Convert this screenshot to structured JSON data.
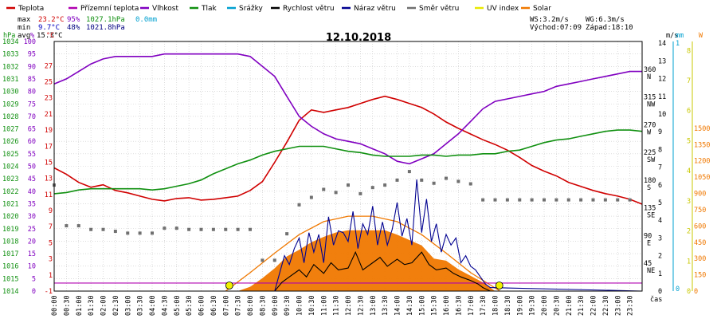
{
  "legend": [
    {
      "label": "Teplota",
      "color": "#d00000"
    },
    {
      "label": "Přízemní teplota",
      "color": "#b000b0"
    },
    {
      "label": "Vlhkost",
      "color": "#8000c0"
    },
    {
      "label": "Tlak",
      "color": "#109010"
    },
    {
      "label": "Srážky",
      "color": "#00a0d0"
    },
    {
      "label": "Rychlost větru",
      "color": "#000000"
    },
    {
      "label": "Náraz větru",
      "color": "#000090"
    },
    {
      "label": "Směr větru",
      "color": "#707070"
    },
    {
      "label": "UV index",
      "color": "#e8e800"
    },
    {
      "label": "Solar",
      "color": "#f07800"
    }
  ],
  "stats": {
    "max_label": "max",
    "max_temp": "23.2°C",
    "max_hum": "95%",
    "max_press": "1027.1hPa",
    "max_rain": "0.0mm",
    "min_label": "min",
    "min_temp": "9.7°C",
    "min_hum": "48%",
    "min_press": "1021.8hPa",
    "avg_label": "avg",
    "avg_temp": "15.3°C",
    "ws": "WS:3.2m/s",
    "wg": "WG:6.3m/s",
    "sunrise": "Východ:07:09",
    "sunset": "Západ:18:10"
  },
  "date_title": "12.10.2018",
  "axes": {
    "hpa_unit": "hPa",
    "pct_unit": "%",
    "c_unit": "°C",
    "ms_unit": "m/s",
    "mm_unit": "mm",
    "w_unit": "W",
    "time_unit": "čas",
    "hpa_ticks": [
      "1034",
      "1033",
      "1032",
      "1031",
      "1030",
      "1029",
      "1028",
      "1027",
      "1026",
      "1025",
      "1024",
      "1023",
      "1022",
      "1021",
      "1020",
      "1019",
      "1018",
      "1017",
      "1016",
      "1015",
      "1014"
    ],
    "pct_ticks": [
      "100",
      "95",
      "90",
      "85",
      "80",
      "75",
      "70",
      "65",
      "60",
      "55",
      "50",
      "45",
      "40",
      "35",
      "30",
      "25",
      "20",
      "15",
      "10",
      "5",
      "0"
    ],
    "c_ticks": [
      "27",
      "25",
      "23",
      "21",
      "19",
      "17",
      "15",
      "13",
      "11",
      "9",
      "7",
      "5",
      "3",
      "1",
      "-1"
    ],
    "dir_ticks": [
      {
        "deg": "360",
        "name": "N"
      },
      {
        "deg": "315",
        "name": "NW"
      },
      {
        "deg": "270",
        "name": "W"
      },
      {
        "deg": "225",
        "name": "SW"
      },
      {
        "deg": "180",
        "name": "S"
      },
      {
        "deg": "135",
        "name": "SE"
      },
      {
        "deg": "90",
        "name": "E"
      },
      {
        "deg": "45",
        "name": "NE"
      }
    ],
    "ms_ticks": [
      "14",
      "13",
      "12",
      "11",
      "10",
      "9",
      "8",
      "7",
      "6",
      "5",
      "4",
      "3",
      "2",
      "1",
      "0"
    ],
    "mm_ticks": [
      "1",
      "0"
    ],
    "uv_ticks": [
      "8",
      "7",
      "6",
      "5",
      "4",
      "3",
      "2",
      "1",
      "0"
    ],
    "w_ticks": [
      "1500",
      "1350",
      "1200",
      "1050",
      "900",
      "750",
      "600",
      "450",
      "300",
      "150",
      "0"
    ],
    "time_ticks": [
      "00:00",
      "00:30",
      "01:00",
      "01:30",
      "02:00",
      "02:30",
      "03:00",
      "03:30",
      "04:00",
      "04:30",
      "05:00",
      "05:30",
      "06:00",
      "06:30",
      "07:00",
      "07:30",
      "08:00",
      "08:30",
      "09:00",
      "09:30",
      "10:00",
      "10:30",
      "11:00",
      "11:30",
      "12:00",
      "12:30",
      "13:00",
      "13:30",
      "14:00",
      "14:30",
      "15:00",
      "15:30",
      "16:00",
      "16:30",
      "17:00",
      "17:30",
      "18:00",
      "18:30",
      "19:00",
      "19:30",
      "20:00",
      "20:30",
      "21:00",
      "21:30",
      "22:00",
      "22:30",
      "23:00",
      "23:30"
    ]
  },
  "chart_data": {
    "type": "line",
    "x_unit": "hour",
    "xlim": [
      0,
      24
    ],
    "series": [
      {
        "name": "Teplota",
        "unit": "°C",
        "color": "#d00000",
        "x": [
          0,
          0.5,
          1,
          1.5,
          2,
          2.5,
          3,
          3.5,
          4,
          4.5,
          5,
          5.5,
          6,
          6.5,
          7,
          7.5,
          8,
          8.5,
          9,
          9.5,
          10,
          10.5,
          11,
          11.5,
          12,
          12.5,
          13,
          13.5,
          14,
          14.5,
          15,
          15.5,
          16,
          16.5,
          17,
          17.5,
          18,
          18.5,
          19,
          19.5,
          20,
          20.5,
          21,
          21.5,
          22,
          22.5,
          23,
          23.5,
          24
        ],
        "values": [
          14.3,
          13.5,
          12.5,
          11.9,
          12.2,
          11.5,
          11.2,
          10.8,
          10.4,
          10.2,
          10.5,
          10.6,
          10.3,
          10.4,
          10.6,
          10.8,
          11.5,
          12.6,
          15.0,
          17.5,
          20.2,
          21.5,
          21.2,
          21.5,
          21.8,
          22.3,
          22.8,
          23.2,
          22.8,
          22.3,
          21.8,
          21.0,
          20.0,
          19.2,
          18.5,
          17.8,
          17.2,
          16.5,
          15.6,
          14.6,
          13.9,
          13.3,
          12.5,
          12.0,
          11.5,
          11.1,
          10.8,
          10.4,
          9.8
        ]
      },
      {
        "name": "Přízemní teplota",
        "unit": "°C",
        "color": "#b000b0",
        "x": [
          0,
          24
        ],
        "values": [
          0.0,
          0.0
        ]
      },
      {
        "name": "Vlhkost",
        "unit": "%",
        "color": "#8000c0",
        "x": [
          0,
          0.5,
          1,
          1.5,
          2,
          2.5,
          3,
          3.5,
          4,
          4.5,
          5,
          5.5,
          6,
          6.5,
          7,
          7.5,
          8,
          8.5,
          9,
          9.5,
          10,
          10.5,
          11,
          11.5,
          12,
          12.5,
          13,
          13.5,
          14,
          14.5,
          15,
          15.5,
          16,
          16.5,
          17,
          17.5,
          18,
          18.5,
          19,
          19.5,
          20,
          20.5,
          21,
          21.5,
          22,
          22.5,
          23,
          23.5,
          24
        ],
        "values": [
          83,
          85,
          88,
          91,
          93,
          94,
          94,
          94,
          94,
          95,
          95,
          95,
          95,
          95,
          95,
          95,
          94,
          90,
          86,
          78,
          70,
          66,
          63,
          61,
          60,
          59,
          57,
          55,
          52,
          51,
          53,
          55,
          59,
          63,
          68,
          73,
          76,
          77,
          78,
          79,
          80,
          82,
          83,
          84,
          85,
          86,
          87,
          88,
          88
        ]
      },
      {
        "name": "Tlak",
        "unit": "hPa",
        "color": "#109010",
        "x": [
          0,
          0.5,
          1,
          1.5,
          2,
          2.5,
          3,
          3.5,
          4,
          4.5,
          5,
          5.5,
          6,
          6.5,
          7,
          7.5,
          8,
          8.5,
          9,
          9.5,
          10,
          10.5,
          11,
          11.5,
          12,
          12.5,
          13,
          13.5,
          14,
          14.5,
          15,
          15.5,
          16,
          16.5,
          17,
          17.5,
          18,
          18.5,
          19,
          19.5,
          20,
          20.5,
          21,
          21.5,
          22,
          22.5,
          23,
          23.5,
          24
        ],
        "values": [
          1021.8,
          1021.9,
          1022.1,
          1022.2,
          1022.2,
          1022.2,
          1022.2,
          1022.2,
          1022.1,
          1022.2,
          1022.4,
          1022.6,
          1022.9,
          1023.4,
          1023.8,
          1024.2,
          1024.5,
          1024.9,
          1025.2,
          1025.4,
          1025.6,
          1025.6,
          1025.6,
          1025.4,
          1025.2,
          1025.1,
          1024.9,
          1024.8,
          1024.8,
          1024.8,
          1024.9,
          1024.9,
          1024.8,
          1024.9,
          1024.9,
          1025.0,
          1025.0,
          1025.2,
          1025.3,
          1025.6,
          1025.9,
          1026.1,
          1026.2,
          1026.4,
          1026.6,
          1026.8,
          1026.9,
          1026.9,
          1026.8
        ]
      },
      {
        "name": "Srážky",
        "unit": "mm",
        "color": "#00a0d0",
        "x": [
          0,
          24
        ],
        "values": [
          0.0,
          0.0
        ]
      },
      {
        "name": "Rychlost větru",
        "unit": "m/s",
        "color": "#000000",
        "x": [
          0,
          9.0,
          9.3,
          9.6,
          10,
          10.3,
          10.6,
          11,
          11.3,
          11.6,
          12,
          12.3,
          12.6,
          13,
          13.3,
          13.6,
          14,
          14.3,
          14.6,
          15,
          15.3,
          15.6,
          16,
          16.3,
          16.6,
          17,
          17.3,
          17.5,
          17.8,
          24
        ],
        "values": [
          0,
          0,
          0.5,
          0.8,
          1.2,
          0.8,
          1.5,
          1.0,
          1.6,
          1.2,
          1.3,
          2.2,
          1.2,
          1.6,
          1.9,
          1.4,
          1.8,
          1.5,
          1.6,
          2.2,
          1.5,
          1.2,
          1.3,
          1.0,
          0.8,
          0.6,
          0.4,
          0.2,
          0,
          0
        ]
      },
      {
        "name": "Náraz větru",
        "unit": "m/s",
        "color": "#000090",
        "x": [
          0,
          9.0,
          9.2,
          9.4,
          9.6,
          9.8,
          10,
          10.2,
          10.4,
          10.6,
          10.8,
          11,
          11.2,
          11.4,
          11.6,
          11.8,
          12,
          12.2,
          12.4,
          12.6,
          12.8,
          13,
          13.2,
          13.4,
          13.6,
          13.8,
          14,
          14.2,
          14.4,
          14.6,
          14.8,
          15,
          15.2,
          15.4,
          15.6,
          15.8,
          16,
          16.2,
          16.4,
          16.6,
          16.8,
          17,
          17.2,
          17.4,
          17.6,
          17.8,
          24
        ],
        "values": [
          0,
          0,
          1.0,
          2.0,
          1.5,
          2.4,
          3.0,
          1.6,
          3.3,
          2.2,
          3.2,
          1.6,
          4.2,
          2.6,
          3.4,
          3.3,
          2.8,
          4.5,
          2.4,
          3.8,
          3.2,
          4.8,
          2.6,
          3.9,
          2.6,
          3.5,
          5.0,
          3.1,
          4.1,
          2.6,
          6.3,
          3.3,
          5.2,
          2.8,
          3.8,
          2.2,
          3.2,
          2.6,
          3.0,
          1.6,
          2.0,
          1.4,
          1.2,
          0.8,
          0.4,
          0.2,
          0
        ]
      },
      {
        "name": "Směr větru",
        "unit": "°",
        "color": "#707070",
        "x": [
          0,
          0.5,
          1,
          1.5,
          2,
          2.5,
          3,
          3.5,
          4,
          4.5,
          5,
          5.5,
          6,
          6.5,
          7,
          7.5,
          8,
          8.5,
          9,
          9.5,
          10,
          10.5,
          11,
          11.5,
          12,
          12.5,
          13,
          13.5,
          14,
          14.5,
          15,
          15.5,
          16,
          16.5,
          17,
          17.5,
          18,
          18.5,
          19,
          19.5,
          20,
          20.5,
          21,
          21.5,
          22,
          22.5,
          23,
          23.5
        ],
        "values": [
          172,
          106,
          106,
          100,
          100,
          97,
          94,
          94,
          94,
          102,
          102,
          100,
          100,
          100,
          100,
          100,
          100,
          50,
          50,
          93,
          140,
          152,
          165,
          160,
          172,
          158,
          168,
          172,
          180,
          194,
          180,
          175,
          183,
          178,
          174,
          148,
          148,
          148,
          148,
          148,
          148,
          148,
          148,
          148,
          148,
          148,
          148,
          148
        ]
      },
      {
        "name": "UV index",
        "unit": "",
        "color": "#e8e800",
        "x": [
          0,
          24
        ],
        "values": [
          0,
          0
        ]
      },
      {
        "name": "Solar",
        "unit": "W",
        "color": "#f07800",
        "x": [
          0,
          7.5,
          8.0,
          8.5,
          9.0,
          9.5,
          10,
          10.5,
          11,
          11.5,
          12,
          12.5,
          13,
          13.5,
          14,
          14.5,
          15,
          15.5,
          16,
          16.5,
          17,
          17.5,
          18,
          24
        ],
        "values": [
          0,
          0,
          40,
          120,
          210,
          320,
          380,
          450,
          500,
          540,
          560,
          560,
          560,
          560,
          520,
          470,
          420,
          300,
          280,
          200,
          140,
          80,
          0,
          0
        ]
      },
      {
        "name": "Solar max",
        "unit": "W",
        "color": "#f07800",
        "x": [
          7.0,
          8,
          9,
          10,
          11,
          12,
          13,
          14,
          15,
          16,
          17,
          18.2
        ],
        "values": [
          0,
          170,
          350,
          520,
          640,
          690,
          690,
          640,
          520,
          350,
          170,
          0
        ]
      }
    ],
    "sunrise_x": 7.15,
    "sunset_x": 18.17,
    "grid": true,
    "legend": "top"
  }
}
